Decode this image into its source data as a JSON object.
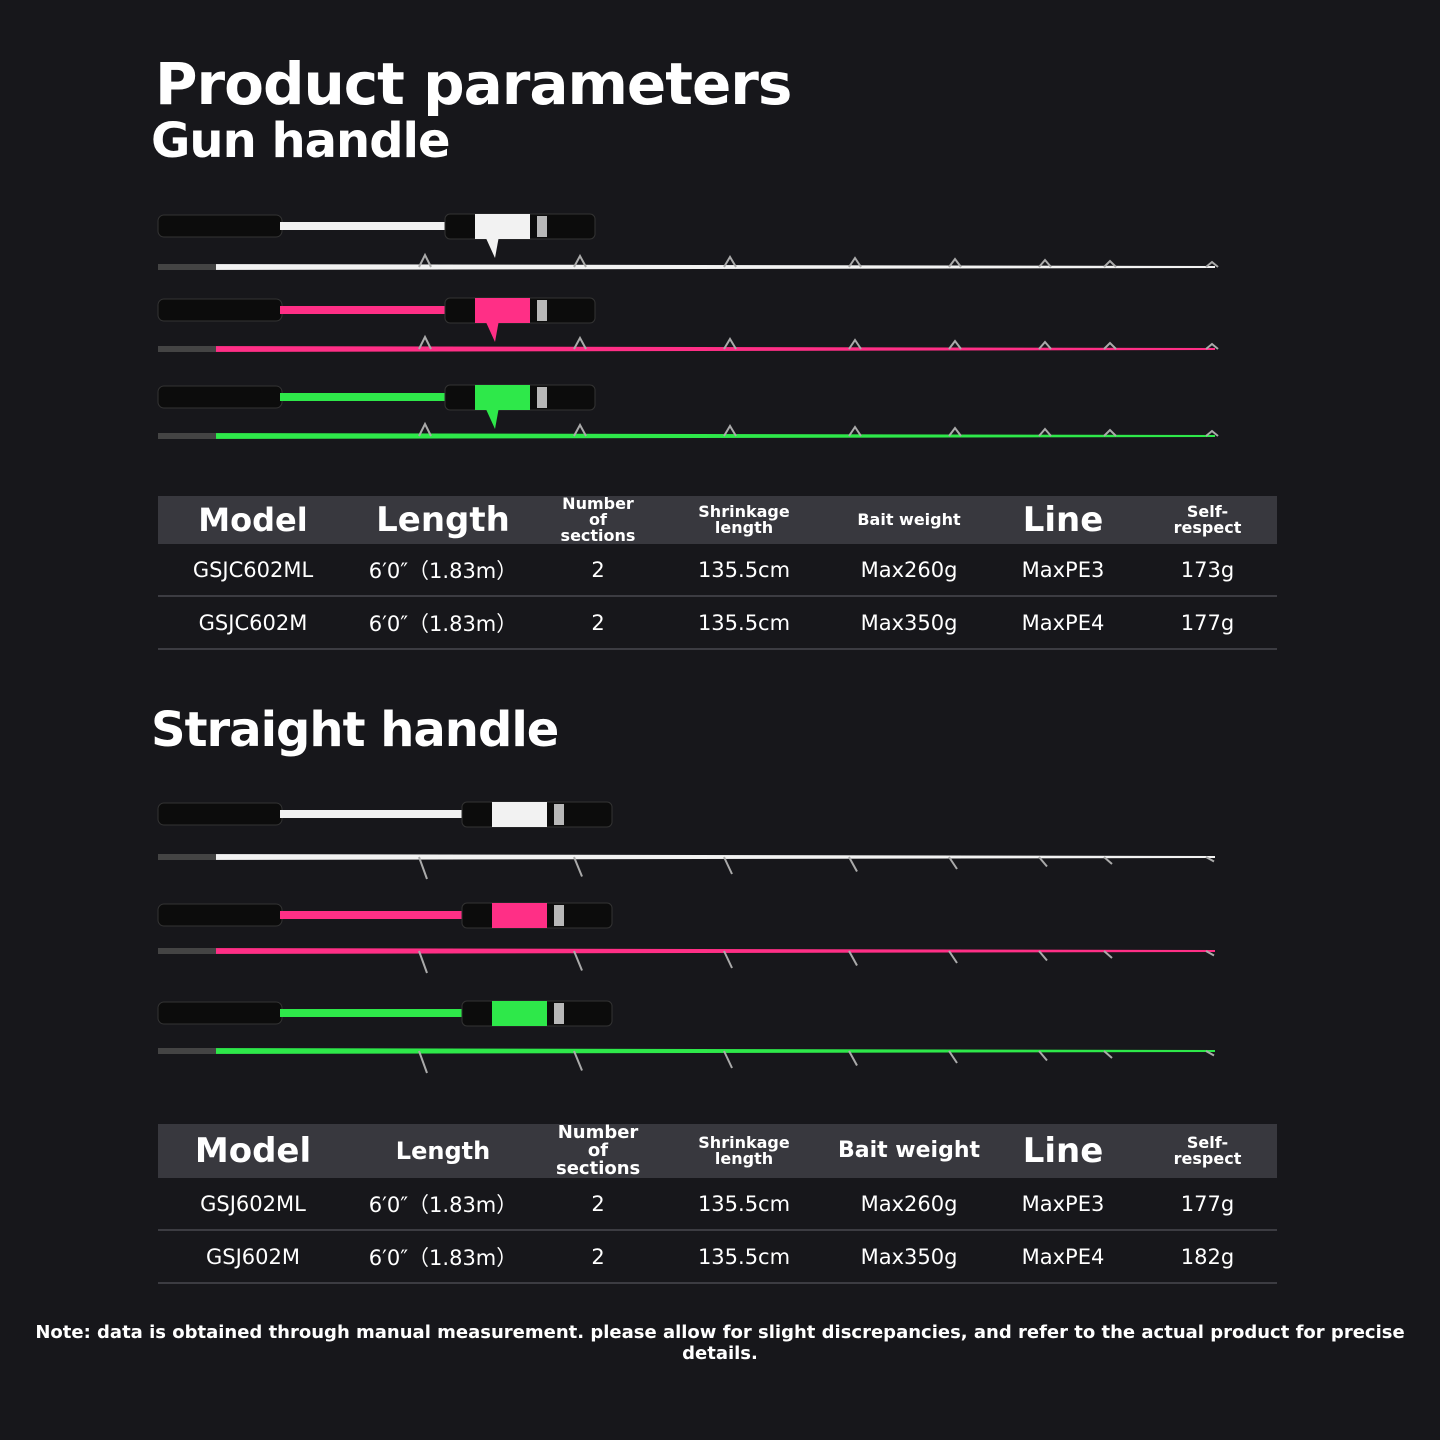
{
  "title": "Product parameters",
  "sections": [
    {
      "title": "Gun handle",
      "table": {
        "headers": [
          "Model",
          "Length",
          "Number of sections",
          "Shrinkage length",
          "Bait weight",
          "Line",
          "Self-respect"
        ],
        "rows": [
          [
            "GSJC602ML",
            "6′0″（1.83m）",
            "2",
            "135.5cm",
            "Max260g",
            "MaxPE3",
            "173g"
          ],
          [
            "GSJC602M",
            "6′0″（1.83m）",
            "2",
            "135.5cm",
            "Max350g",
            "MaxPE4",
            "177g"
          ]
        ]
      }
    },
    {
      "title": "Straight handle",
      "table": {
        "headers": [
          "Model",
          "Length",
          "Number of sections",
          "Shrinkage length",
          "Bait weight",
          "Line",
          "Self-respect"
        ],
        "rows": [
          [
            "GSJ602ML",
            "6′0″（1.83m）",
            "2",
            "135.5cm",
            "Max260g",
            "MaxPE3",
            "177g"
          ],
          [
            "GSJ602M",
            "6′0″（1.83m）",
            "2",
            "135.5cm",
            "Max350g",
            "MaxPE4",
            "182g"
          ]
        ]
      }
    }
  ],
  "note": "Note: data is obtained through manual measurement. please allow for slight discrepancies, and refer to the actual product for precise details."
}
